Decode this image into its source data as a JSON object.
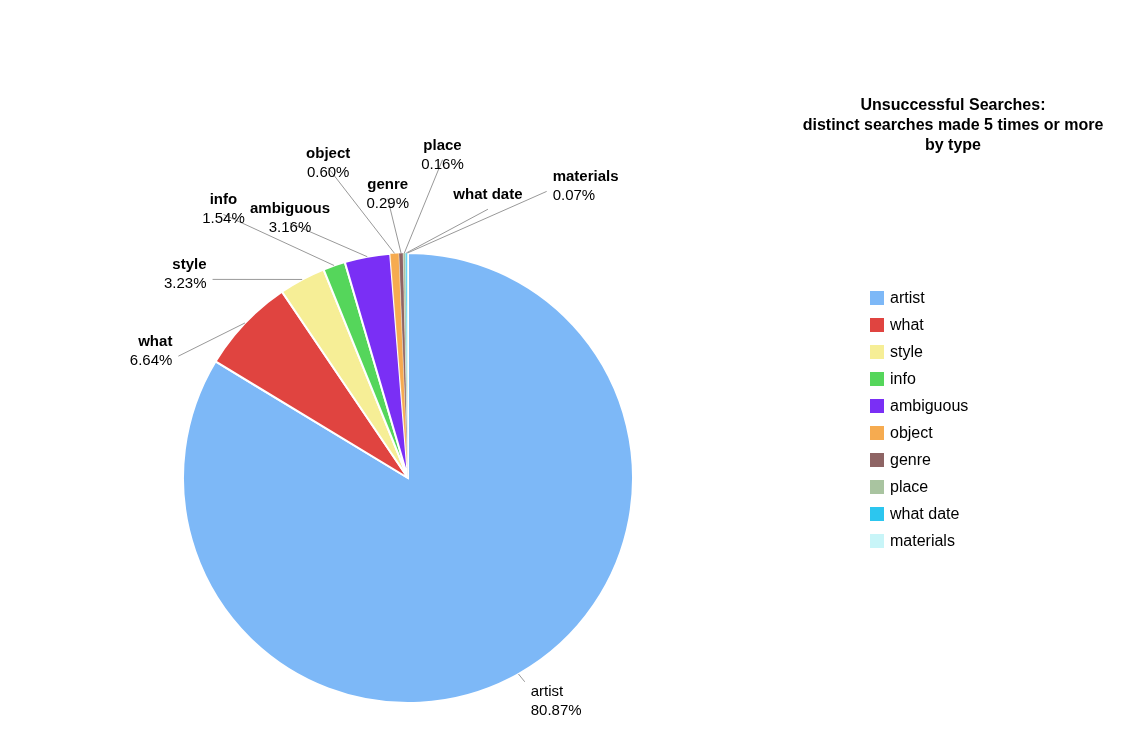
{
  "chart_data": {
    "type": "pie",
    "title": "Unsuccessful Searches:\ndistinct searches made 5 times or more\nby type",
    "categories": [
      "artist",
      "what",
      "style",
      "info",
      "ambiguous",
      "object",
      "genre",
      "place",
      "what date",
      "materials"
    ],
    "values": [
      80.87,
      6.64,
      3.23,
      1.54,
      3.16,
      0.6,
      0.29,
      0.16,
      0.1,
      0.07
    ],
    "value_labels": [
      "80.87%",
      "6.64%",
      "3.23%",
      "1.54%",
      "3.16%",
      "0.60%",
      "0.29%",
      "0.16%",
      null,
      "0.07%"
    ],
    "colors": [
      "#7db8f7",
      "#e04440",
      "#f6ee96",
      "#55d65b",
      "#7a2ff5",
      "#f6ab50",
      "#8e6464",
      "#a9c4a0",
      "#2cc6ef",
      "#c8f5f8"
    ],
    "legend": "right"
  }
}
